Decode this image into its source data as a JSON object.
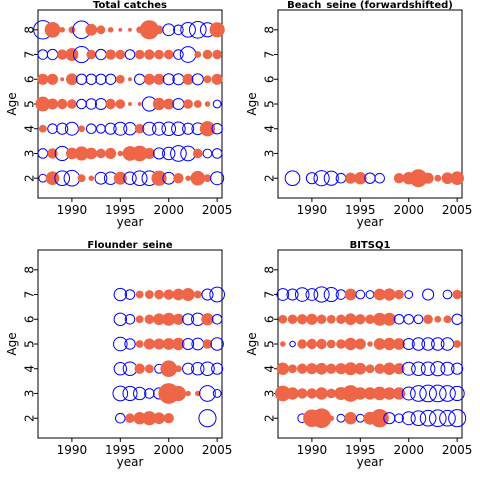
{
  "colors": {
    "positive": "#ef6548",
    "negative": "#0000ff",
    "frame": "#000000"
  },
  "chart_data": [
    {
      "type": "scatter",
      "title": "Total catches",
      "xlabel": "year",
      "ylabel": "Age",
      "xlim": [
        1986.5,
        2005.5
      ],
      "ylim": [
        1.2,
        8.8
      ],
      "xticks": [
        1990,
        1995,
        2000,
        2005
      ],
      "yticks": [
        2,
        3,
        4,
        5,
        6,
        7,
        8
      ],
      "points": [
        {
          "age": 8,
          "x": [
            1987,
            1988,
            1989,
            1990,
            1991,
            1992,
            1993,
            1994,
            1995,
            1996,
            1997,
            1998,
            1999,
            2000,
            2001,
            2002,
            2003,
            2004,
            2005
          ],
          "r": [
            -2.2,
            1.6,
            0.2,
            0.3,
            -2,
            0.9,
            0.5,
            0.2,
            0.1,
            0.1,
            0.3,
            2.4,
            0.5,
            -0.9,
            -0.6,
            -1.4,
            -1.8,
            -1.3,
            1.5
          ]
        },
        {
          "age": 7,
          "x": [
            1987,
            1988,
            1989,
            1990,
            1991,
            1992,
            1993,
            1994,
            1995,
            1996,
            1997,
            1998,
            1999,
            2000,
            2001,
            2002,
            2003,
            2004,
            2005
          ],
          "r": [
            -0.6,
            -0.7,
            0.7,
            1.1,
            -1.7,
            0.6,
            -0.7,
            0.7,
            0.6,
            -0.6,
            0.6,
            0.7,
            0.6,
            0.6,
            -0.6,
            -1.6,
            0.3,
            0.6,
            0.6
          ]
        },
        {
          "age": 6,
          "x": [
            1987,
            1988,
            1989,
            1990,
            1991,
            1992,
            1993,
            1994,
            1995,
            1996,
            1997,
            1998,
            1999,
            2000,
            2001,
            2002,
            2003,
            2004,
            2005
          ],
          "r": [
            0.8,
            0.8,
            0.1,
            0.9,
            -0.7,
            -0.7,
            -0.7,
            -0.7,
            0.5,
            0.1,
            -0.7,
            0.8,
            0.8,
            -0.8,
            -0.8,
            0.8,
            -0.8,
            0.4,
            0.8
          ]
        },
        {
          "age": 5,
          "x": [
            1987,
            1988,
            1989,
            1990,
            1991,
            1992,
            1993,
            1994,
            1995,
            1996,
            1997,
            1998,
            1999,
            2000,
            2001,
            2002,
            2003,
            2004,
            2005
          ],
          "r": [
            1.4,
            0.8,
            0.7,
            0.6,
            -0.6,
            -0.7,
            -0.8,
            0.7,
            0.6,
            0.1,
            0.1,
            -1.3,
            1.0,
            0.8,
            -0.8,
            0.6,
            0.4,
            0.2,
            -0.4
          ]
        },
        {
          "age": 4,
          "x": [
            1987,
            1988,
            1989,
            1990,
            1991,
            1992,
            1993,
            1994,
            1995,
            1996,
            1997,
            1998,
            1999,
            2000,
            2001,
            2002,
            2003,
            2004,
            2005
          ],
          "r": [
            0.4,
            -0.6,
            -0.8,
            -1.1,
            0.3,
            -0.6,
            -0.5,
            -0.8,
            -1.1,
            -1.0,
            0.6,
            -1.1,
            -1.1,
            -1.2,
            -1.2,
            -0.8,
            -0.9,
            1.5,
            -0.7
          ]
        },
        {
          "age": 3,
          "x": [
            1987,
            1988,
            1989,
            1990,
            1991,
            1992,
            1993,
            1994,
            1995,
            1996,
            1997,
            1998,
            1999,
            2000,
            2001,
            2002,
            2003,
            2004,
            2005
          ],
          "r": [
            -0.6,
            0.7,
            -1.3,
            0.9,
            1.3,
            0.9,
            0.6,
            0.8,
            0.2,
            1.4,
            1.6,
            0.8,
            -0.8,
            -1.0,
            -1.6,
            -1.4,
            0.6,
            -0.5,
            -0.6
          ]
        },
        {
          "age": 2,
          "x": [
            1987,
            1988,
            1989,
            1990,
            1991,
            1992,
            1993,
            1994,
            1995,
            1996,
            1997,
            1998,
            1999,
            2000,
            2001,
            2002,
            2003,
            2004,
            2005
          ],
          "r": [
            -0.4,
            1.2,
            -1.4,
            -1.6,
            0.4,
            0.2,
            -0.9,
            -1.0,
            1.1,
            -1.0,
            -1.4,
            -1.4,
            1.5,
            -0.9,
            0.7,
            0.2,
            1.4,
            0.4,
            -1.1
          ]
        }
      ]
    },
    {
      "type": "scatter",
      "title": "Beach_seine (forwardshifted)",
      "xlabel": "year",
      "ylabel": "Age",
      "xlim": [
        1986.5,
        2005.5
      ],
      "ylim": [
        1.2,
        8.8
      ],
      "xticks": [
        1990,
        1995,
        2000,
        2005
      ],
      "yticks": [
        2,
        3,
        4,
        5,
        6,
        7,
        8
      ],
      "points": [
        {
          "age": 2,
          "x": [
            1988,
            1990,
            1991,
            1992,
            1993,
            1994,
            1995,
            1996,
            1997,
            1999,
            2000,
            2001,
            2002,
            2003,
            2004,
            2005
          ],
          "r": [
            -1.4,
            -0.8,
            -1.5,
            -1.3,
            -0.6,
            0.8,
            1.0,
            -0.7,
            -0.6,
            0.7,
            1.0,
            2.1,
            0.8,
            0.3,
            0.9,
            1.2
          ]
        }
      ]
    },
    {
      "type": "scatter",
      "title": "Flounder_seine",
      "xlabel": "year",
      "ylabel": "Age",
      "xlim": [
        1986.5,
        2005.5
      ],
      "ylim": [
        1.2,
        8.8
      ],
      "xticks": [
        1990,
        1995,
        2000,
        2005
      ],
      "yticks": [
        2,
        3,
        4,
        5,
        6,
        7,
        8
      ],
      "points": [
        {
          "age": 7,
          "x": [
            1995,
            1996,
            1997,
            1998,
            1999,
            2000,
            2001,
            2002,
            2003,
            2004,
            2005
          ],
          "r": [
            -1.0,
            -0.6,
            0.4,
            0.5,
            0.6,
            0.7,
            0.9,
            1.1,
            0.4,
            -0.8,
            -1.4
          ]
        },
        {
          "age": 6,
          "x": [
            1995,
            1996,
            1997,
            1998,
            1999,
            2000,
            2001,
            2002,
            2003,
            2004,
            2005
          ],
          "r": [
            -1.0,
            -0.6,
            0.4,
            0.6,
            0.9,
            1.1,
            0.8,
            -0.8,
            -1.0,
            1.0,
            -0.6
          ]
        },
        {
          "age": 5,
          "x": [
            1995,
            1996,
            1997,
            1998,
            1999,
            2000,
            2001,
            2002,
            2003,
            2004,
            2005
          ],
          "r": [
            -1.2,
            -0.7,
            0.4,
            0.8,
            0.8,
            0.9,
            1.0,
            -0.8,
            -0.9,
            0.6,
            -1.0
          ]
        },
        {
          "age": 4,
          "x": [
            1995,
            1996,
            1997,
            1998,
            1999,
            2000,
            2001,
            2002,
            2003,
            2004,
            2005
          ],
          "r": [
            -1.0,
            -1.2,
            0.7,
            0.5,
            -0.5,
            1.8,
            0.3,
            -0.8,
            -1.0,
            -1.2,
            -0.8
          ]
        },
        {
          "age": 3,
          "x": [
            1995,
            1996,
            1997,
            1998,
            1999,
            2000,
            2001,
            2002,
            2003,
            2004,
            2005
          ],
          "r": [
            -1.4,
            -1.3,
            -1.0,
            -0.6,
            -0.8,
            2.8,
            1.5,
            0.2,
            0.2,
            -1.6,
            -0.4
          ]
        },
        {
          "age": 2,
          "x": [
            1995,
            1996,
            1997,
            1998,
            1999,
            2000,
            2004
          ],
          "r": [
            -0.6,
            0.6,
            1.0,
            1.3,
            0.9,
            0.7,
            -1.9
          ]
        }
      ]
    },
    {
      "type": "scatter",
      "title": "BITSQ1",
      "xlabel": "year",
      "ylabel": "Age",
      "xlim": [
        1986.5,
        2005.5
      ],
      "ylim": [
        1.2,
        8.8
      ],
      "xticks": [
        1990,
        1995,
        2000,
        2005
      ],
      "yticks": [
        2,
        3,
        4,
        5,
        6,
        7,
        8
      ],
      "points": [
        {
          "age": 7,
          "x": [
            1987,
            1988,
            1989,
            1990,
            1991,
            1992,
            1993,
            1994,
            1995,
            1996,
            1997,
            1998,
            1999,
            2000,
            2002,
            2004,
            2005
          ],
          "r": [
            -0.9,
            -0.8,
            -1.2,
            -0.9,
            -1.5,
            -1.3,
            -0.6,
            0.9,
            -0.5,
            -0.4,
            0.9,
            1.0,
            0.6,
            -0.4,
            -0.8,
            -0.5,
            0.6
          ]
        },
        {
          "age": 6,
          "x": [
            1987,
            1988,
            1989,
            1990,
            1991,
            1992,
            1993,
            1994,
            1995,
            1996,
            1997,
            1998,
            1999,
            2000,
            2001,
            2002,
            2003,
            2004,
            2005
          ],
          "r": [
            0.5,
            0.6,
            0.7,
            0.8,
            0.6,
            0.5,
            0.6,
            0.9,
            0.7,
            0.6,
            1.1,
            1.1,
            -0.6,
            -0.6,
            -0.5,
            0.6,
            0.3,
            0.4,
            -0.7
          ]
        },
        {
          "age": 5,
          "x": [
            1987,
            1988,
            1989,
            1990,
            1991,
            1992,
            1993,
            1994,
            1995,
            1996,
            1997,
            1998,
            1999,
            2000,
            2001,
            2002,
            2003,
            2004,
            2005
          ],
          "r": [
            0.2,
            -0.2,
            0.6,
            0.7,
            0.7,
            0.5,
            0.6,
            1.0,
            0.8,
            0.2,
            0.9,
            1.0,
            0.9,
            -0.8,
            -1.0,
            -1.0,
            -1.0,
            -1.0,
            0.4
          ]
        },
        {
          "age": 4,
          "x": [
            1987,
            1988,
            1989,
            1990,
            1991,
            1992,
            1993,
            1994,
            1995,
            1996,
            1997,
            1998,
            1999,
            2000,
            2001,
            2002,
            2003,
            2004,
            2005
          ],
          "r": [
            1.0,
            0.5,
            0.7,
            0.8,
            0.9,
            0.7,
            0.8,
            1.1,
            0.9,
            0.5,
            0.7,
            1.0,
            0.8,
            -1.1,
            -1.2,
            -1.2,
            -1.3,
            -1.1,
            -0.8
          ]
        },
        {
          "age": 3,
          "x": [
            1987,
            1988,
            1989,
            1990,
            1991,
            1992,
            1993,
            1994,
            1995,
            1996,
            1997,
            1998,
            1999,
            2000,
            2001,
            2002,
            2003,
            2004,
            2005
          ],
          "r": [
            1.6,
            1.0,
            0.7,
            0.7,
            1.0,
            0.6,
            1.1,
            1.8,
            1.0,
            1.0,
            1.2,
            1.0,
            1.0,
            -1.1,
            -1.6,
            -1.8,
            -1.8,
            -1.6,
            -1.3
          ]
        },
        {
          "age": 2,
          "x": [
            1989,
            1990,
            1991,
            1992,
            1993,
            1994,
            1995,
            1996,
            1997,
            1998,
            1999,
            2000,
            2001,
            2002,
            2003,
            2004,
            2005
          ],
          "r": [
            -0.5,
            2.0,
            2.5,
            0.2,
            -0.4,
            1.0,
            -0.4,
            1.1,
            2.2,
            -0.8,
            -0.5,
            -1.1,
            -1.4,
            -1.6,
            -1.8,
            -1.6,
            -1.9
          ]
        }
      ]
    }
  ]
}
